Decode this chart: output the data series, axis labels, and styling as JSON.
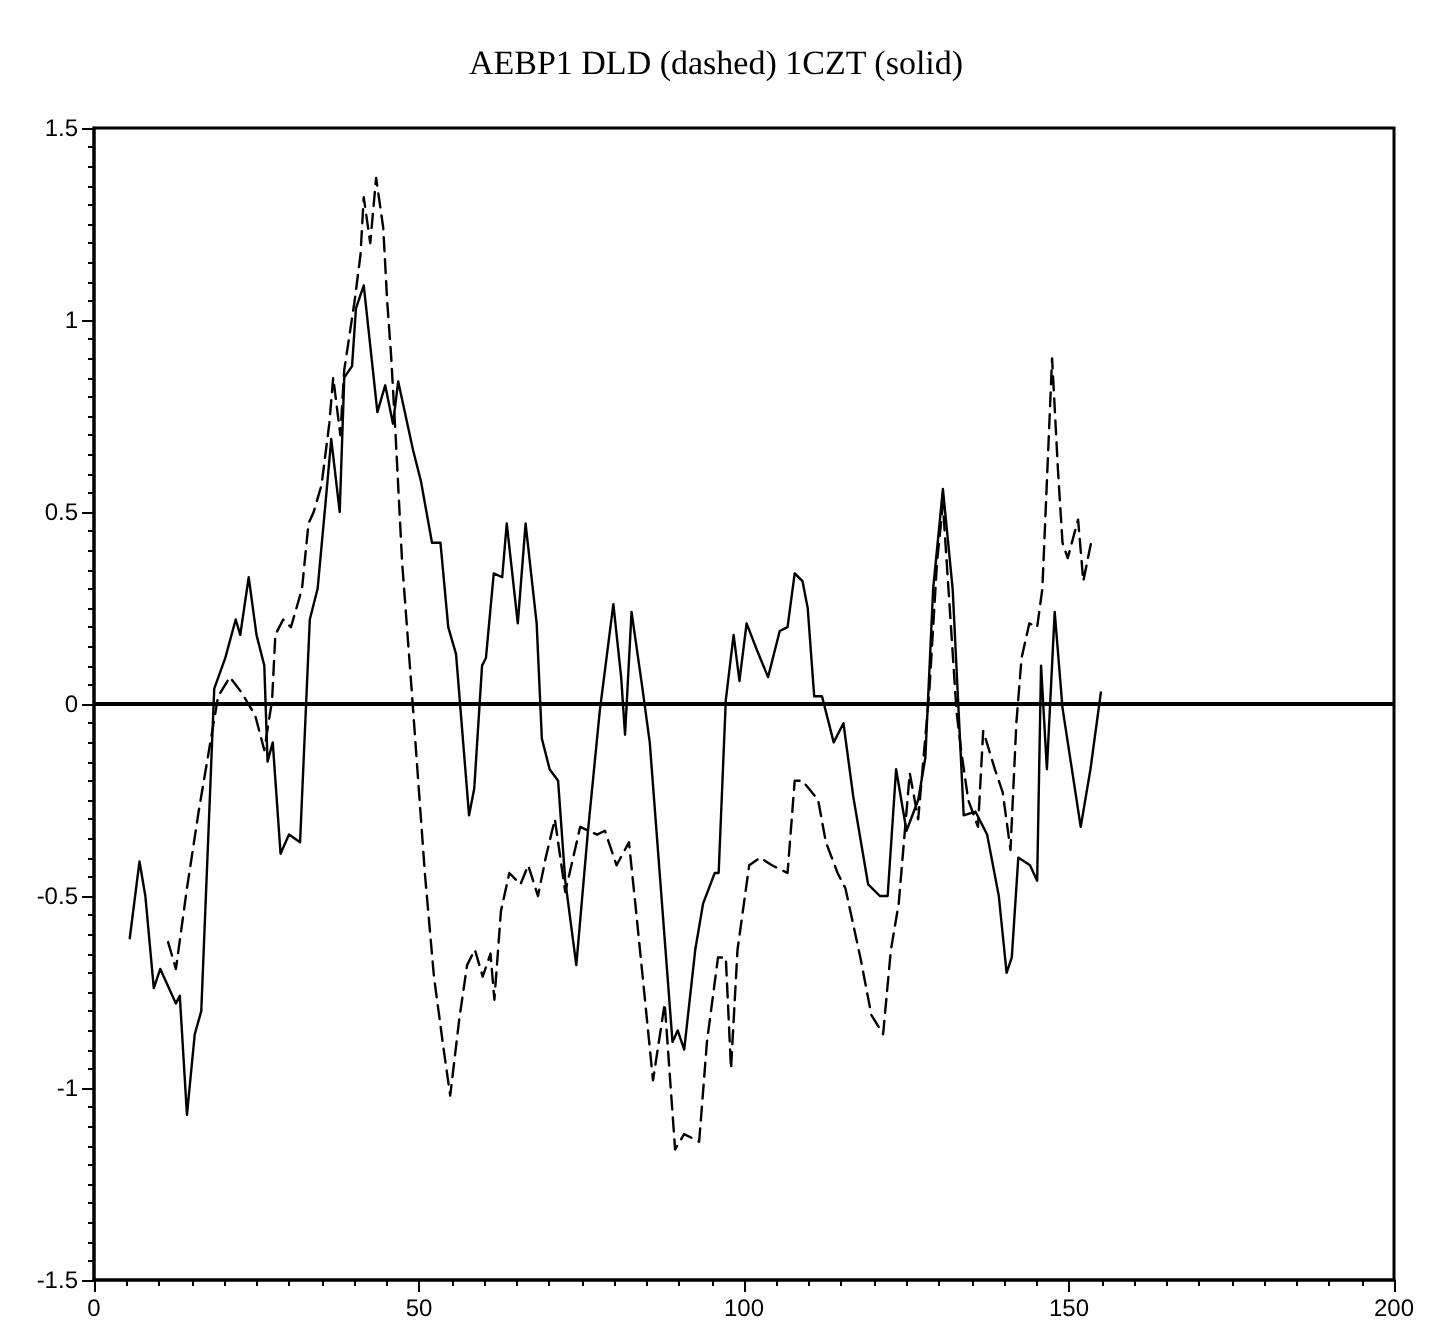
{
  "chart_data": {
    "type": "line",
    "title": "AEBP1 DLD (dashed) 1CZT (solid)",
    "xlim": [
      0,
      200
    ],
    "xticks": [
      0,
      50,
      100,
      150,
      200
    ],
    "ylim": [
      -1.5,
      1.5
    ],
    "yticks": [
      -1.5,
      -1,
      -0.5,
      0,
      0.5,
      1,
      1.5
    ],
    "marker": "none",
    "ref_lines": [
      {
        "axis": "y",
        "value": 0,
        "color": "#000000",
        "line_style": "solid"
      }
    ],
    "series": [
      {
        "color": "#000000",
        "line_style": "solid",
        "x": [
          5.5,
          7,
          7.9,
          9.2,
          10.2,
          12.6,
          13.2,
          14.3,
          15.5,
          16.5,
          18.5,
          20.2,
          21.8,
          22.5,
          23.8,
          25,
          26.2,
          26.7,
          27.5,
          28.7,
          30,
          31.7,
          33.2,
          34.4,
          35.6,
          36.5,
          37.8,
          38.5,
          39.7,
          40.3,
          41.5,
          43.6,
          44.8,
          46,
          46.8,
          49.1,
          50.3,
          52,
          53.3,
          54.5,
          55.7,
          57.7,
          58.5,
          59.7,
          60.3,
          61.5,
          62.8,
          63.5,
          65.2,
          66.4,
          68.1,
          68.9,
          70.1,
          71.4,
          72.5,
          74.2,
          76,
          77.8,
          79.9,
          81.1,
          81.7,
          82.7,
          84.3,
          85.5,
          89,
          89.8,
          90.8,
          92.5,
          93.7,
          95.5,
          96.1,
          97.2,
          98.4,
          99.3,
          100.4,
          102,
          103.7,
          105.5,
          106.7,
          107.8,
          109,
          109.8,
          110.8,
          112,
          113.8,
          115.3,
          116.8,
          119.1,
          120.9,
          122.1,
          123.4,
          125,
          126.8,
          127.9,
          129.1,
          130.6,
          132.1,
          133.8,
          135.6,
          137.4,
          139.2,
          140.4,
          141.2,
          142.2,
          144,
          145.1,
          145.7,
          146.6,
          147.8,
          149,
          151.8,
          153.3,
          154.9
        ],
        "values": [
          -0.61,
          -0.41,
          -0.5,
          -0.74,
          -0.69,
          -0.78,
          -0.76,
          -1.07,
          -0.86,
          -0.8,
          0.04,
          0.12,
          0.22,
          0.18,
          0.33,
          0.18,
          0.1,
          -0.15,
          -0.1,
          -0.39,
          -0.34,
          -0.36,
          0.22,
          0.3,
          0.52,
          0.69,
          0.5,
          0.85,
          0.88,
          1.03,
          1.09,
          0.76,
          0.83,
          0.73,
          0.84,
          0.66,
          0.58,
          0.42,
          0.42,
          0.2,
          0.13,
          -0.29,
          -0.22,
          0.1,
          0.12,
          0.34,
          0.33,
          0.47,
          0.21,
          0.47,
          0.21,
          -0.09,
          -0.17,
          -0.2,
          -0.46,
          -0.68,
          -0.33,
          -0.02,
          0.26,
          0.07,
          -0.08,
          0.24,
          0.05,
          -0.1,
          -0.88,
          -0.85,
          -0.9,
          -0.64,
          -0.52,
          -0.44,
          -0.44,
          0.01,
          0.18,
          0.06,
          0.21,
          0.14,
          0.07,
          0.19,
          0.2,
          0.34,
          0.32,
          0.25,
          0.02,
          0.02,
          -0.1,
          -0.05,
          -0.24,
          -0.47,
          -0.5,
          -0.5,
          -0.17,
          -0.33,
          -0.25,
          -0.14,
          0.3,
          0.56,
          0.3,
          -0.29,
          -0.28,
          -0.34,
          -0.5,
          -0.7,
          -0.66,
          -0.4,
          -0.42,
          -0.46,
          0.1,
          -0.17,
          0.24,
          -0.01,
          -0.32,
          -0.17,
          0.03
        ]
      },
      {
        "color": "#000000",
        "line_style": "dashed",
        "x": [
          11.4,
          12.6,
          14.3,
          16.1,
          17.9,
          19.1,
          20.9,
          22.7,
          24.8,
          26.2,
          27.4,
          27.9,
          29.1,
          30.3,
          32,
          33,
          33.8,
          35,
          36.2,
          36.8,
          37.9,
          38.5,
          40.1,
          41,
          41.5,
          42.5,
          43.4,
          44.5,
          45.1,
          45.7,
          46.4,
          47.4,
          48.9,
          50.9,
          52.3,
          53.8,
          54.8,
          56.2,
          57.4,
          58.6,
          59.8,
          61,
          61.6,
          62.6,
          63.9,
          65.6,
          66.8,
          68.3,
          69.5,
          70.9,
          72.5,
          74.8,
          77.4,
          78.6,
          80.4,
          82.3,
          83.4,
          85,
          86,
          87.8,
          89.4,
          90.8,
          93.1,
          94.3,
          96,
          97.2,
          98,
          99,
          100.8,
          102.5,
          104.3,
          106.7,
          107.8,
          109,
          111.4,
          112.6,
          114.4,
          115.6,
          117.9,
          119.6,
          121.4,
          122.6,
          123.8,
          125.5,
          126.8,
          128.5,
          129.7,
          130.6,
          132.7,
          133.4,
          134.5,
          136,
          136.8,
          138.6,
          139.8,
          141,
          141.9,
          142.7,
          143.9,
          145.1,
          145.9,
          146.8,
          147.4,
          148.3,
          149,
          149.8,
          151.4,
          152.2,
          153.4
        ],
        "values": [
          -0.62,
          -0.69,
          -0.48,
          -0.28,
          -0.1,
          0.02,
          0.07,
          0.03,
          -0.03,
          -0.12,
          0.01,
          0.18,
          0.22,
          0.2,
          0.3,
          0.47,
          0.5,
          0.57,
          0.73,
          0.85,
          0.7,
          0.87,
          1.05,
          1.17,
          1.32,
          1.2,
          1.37,
          1.24,
          1.05,
          0.91,
          0.7,
          0.37,
          0.03,
          -0.44,
          -0.71,
          -0.9,
          -1.02,
          -0.82,
          -0.68,
          -0.64,
          -0.71,
          -0.65,
          -0.77,
          -0.54,
          -0.44,
          -0.47,
          -0.42,
          -0.5,
          -0.4,
          -0.3,
          -0.49,
          -0.32,
          -0.34,
          -0.33,
          -0.42,
          -0.36,
          -0.54,
          -0.81,
          -0.98,
          -0.78,
          -1.16,
          -1.12,
          -1.14,
          -0.88,
          -0.66,
          -0.66,
          -0.95,
          -0.64,
          -0.42,
          -0.4,
          -0.42,
          -0.44,
          -0.2,
          -0.2,
          -0.25,
          -0.36,
          -0.44,
          -0.48,
          -0.66,
          -0.81,
          -0.86,
          -0.64,
          -0.52,
          -0.18,
          -0.3,
          0.03,
          0.37,
          0.52,
          -0.02,
          -0.12,
          -0.25,
          -0.32,
          -0.07,
          -0.17,
          -0.23,
          -0.38,
          -0.05,
          0.12,
          0.21,
          0.2,
          0.3,
          0.66,
          0.9,
          0.61,
          0.42,
          0.38,
          0.48,
          0.32,
          0.42
        ]
      }
    ]
  }
}
